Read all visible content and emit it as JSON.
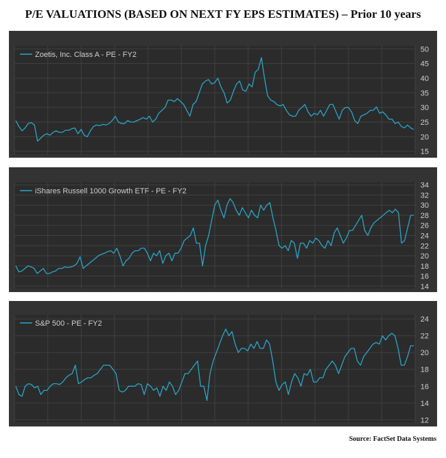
{
  "page": {
    "title": "P/E VALUATIONS (BASED ON NEXT FY EPS ESTIMATES) – Prior 10 years",
    "source": "Source: FactSet Data Systems"
  },
  "colors": {
    "panel_bg": "#333333",
    "plot_bg": "#2b2b2b",
    "grid": "#404040",
    "axis_text": "#d0d0d0",
    "line": "#2aa7c9"
  },
  "chart_data": [
    {
      "type": "line",
      "title": "",
      "legend": "Zoetis, Inc. Class A - PE - FY2",
      "legend_position": "top-left",
      "grid": true,
      "ylim": [
        14,
        51
      ],
      "y_ticks": [
        15,
        20,
        25,
        30,
        35,
        40,
        45,
        50
      ],
      "y_tick_labels": [
        "15",
        "20",
        "25",
        "30",
        "35",
        "40",
        "45",
        "50"
      ],
      "y_axis_side": "right",
      "xlabel": "",
      "ylabel": "",
      "values": [
        25.5,
        23.5,
        22,
        23,
        24.5,
        24.8,
        24,
        18.5,
        19.5,
        20.5,
        21,
        20.5,
        21.5,
        22,
        21.5,
        21.5,
        22.2,
        22.2,
        22.7,
        23,
        21,
        22.5,
        20.5,
        20,
        22,
        23.5,
        24,
        23.8,
        24.2,
        24,
        24.5,
        25.5,
        27,
        25,
        24.5,
        24.5,
        25.5,
        25,
        25,
        25.5,
        26,
        26.5,
        26,
        27,
        25,
        26,
        28,
        29,
        30,
        32.5,
        32.5,
        32,
        33,
        32,
        31,
        29,
        27,
        31,
        32,
        35,
        38,
        39,
        39.5,
        38,
        38.5,
        40,
        37,
        35,
        31.5,
        32.5,
        35.5,
        38,
        39,
        36,
        35.5,
        38,
        37,
        42,
        43,
        47,
        40,
        34,
        32.5,
        32,
        31,
        30.5,
        31,
        29,
        27.5,
        27,
        27,
        29,
        30,
        31,
        28.5,
        27,
        28,
        27.5,
        29,
        27,
        29,
        31,
        31,
        28.5,
        26,
        29,
        30,
        30,
        28.5,
        25.5,
        24.5,
        27,
        27.5,
        28,
        29,
        29,
        30.2,
        28,
        28.5,
        27.5,
        26,
        26,
        24.5,
        25,
        23.5,
        23,
        24,
        23,
        22.5
      ]
    },
    {
      "type": "line",
      "title": "",
      "legend": "iShares Russell 1000 Growth ETF - PE - FY2",
      "legend_position": "top-left",
      "grid": true,
      "ylim": [
        13.5,
        34.5
      ],
      "y_ticks": [
        14,
        16,
        18,
        20,
        22,
        24,
        26,
        28,
        30,
        32,
        34
      ],
      "y_tick_labels": [
        "14",
        "16",
        "18",
        "20",
        "22",
        "24",
        "26",
        "28",
        "30",
        "32",
        "34"
      ],
      "y_axis_side": "right",
      "xlabel": "",
      "ylabel": "",
      "values": [
        18,
        16.8,
        17,
        17.5,
        18,
        17.8,
        17.5,
        16.5,
        17,
        17.5,
        16.5,
        16.5,
        16.8,
        17,
        17.5,
        17.5,
        17.8,
        17.7,
        17.8,
        18,
        18.5,
        19.8,
        17.5,
        18,
        18.5,
        19,
        19.5,
        20,
        20.3,
        20.5,
        20.8,
        21,
        20.5,
        21.5,
        20,
        18,
        19,
        19.5,
        20.5,
        21,
        21,
        21.5,
        21.5,
        20.5,
        19,
        20.5,
        20,
        21,
        18.5,
        20,
        20.5,
        19,
        20.5,
        20.5,
        21.5,
        23,
        23.5,
        24,
        25.5,
        22.5,
        22.5,
        18,
        22,
        24,
        27,
        30,
        31,
        29,
        27.5,
        30,
        31.3,
        30.5,
        29,
        28,
        29.5,
        28.5,
        27.5,
        29,
        28,
        27.5,
        30,
        29,
        30,
        30.5,
        27.5,
        25,
        22,
        21.5,
        22,
        21,
        23,
        22.5,
        19.5,
        22.5,
        22.5,
        21.5,
        23,
        22.5,
        23.5,
        23,
        22,
        21.5,
        23,
        22,
        24.5,
        25.5,
        24,
        22.5,
        23.5,
        25,
        25,
        26,
        27,
        28,
        25,
        24,
        25.5,
        26.5,
        27,
        27.5,
        28,
        28.5,
        29,
        28.5,
        29.2,
        28.5,
        22.5,
        23,
        25.5,
        28,
        28
      ]
    },
    {
      "type": "line",
      "title": "",
      "legend": "S&P 500 - PE - FY2",
      "legend_position": "top-left",
      "grid": true,
      "ylim": [
        11.7,
        24.5
      ],
      "y_ticks": [
        12,
        14,
        16,
        18,
        20,
        22,
        24
      ],
      "y_tick_labels": [
        "12",
        "14",
        "16",
        "18",
        "20",
        "22",
        "24"
      ],
      "y_axis_side": "right",
      "xlabel": "",
      "ylabel": "",
      "values": [
        16,
        15,
        14.8,
        16,
        16.3,
        16.2,
        15.8,
        16,
        15,
        15.5,
        15.5,
        16,
        16.3,
        16.3,
        16.2,
        16.5,
        17,
        17.3,
        17.5,
        18.5,
        16.3,
        16.5,
        16.8,
        17,
        17,
        17.3,
        17.5,
        18,
        18.5,
        18.5,
        18.5,
        18,
        17.5,
        15.5,
        15.3,
        15.5,
        16,
        16,
        16,
        16.3,
        16.2,
        15,
        16.3,
        16,
        15.5,
        15.8,
        14.8,
        16,
        15.5,
        16.5,
        16,
        15,
        15.5,
        16.5,
        17.5,
        17.5,
        18,
        18.5,
        19,
        16,
        16,
        14.3,
        17.5,
        19,
        20,
        21,
        22,
        22.8,
        22,
        22.5,
        21,
        20,
        20.5,
        20.5,
        20.2,
        21,
        20.5,
        21.3,
        20.5,
        20.5,
        21.5,
        21,
        19,
        16.5,
        15.5,
        16.2,
        16.5,
        15,
        16.5,
        17.5,
        17,
        16,
        17.5,
        17.3,
        18,
        16.5,
        16.5,
        17,
        17,
        18,
        18.5,
        19,
        18.5,
        17.5,
        18.5,
        19.5,
        20,
        20.5,
        20.5,
        19,
        18.5,
        19.5,
        20,
        20.5,
        21,
        21.2,
        21,
        22,
        21.5,
        22,
        22.3,
        22,
        20.5,
        18.5,
        18.5,
        19.5,
        20.8,
        20.8
      ]
    }
  ]
}
